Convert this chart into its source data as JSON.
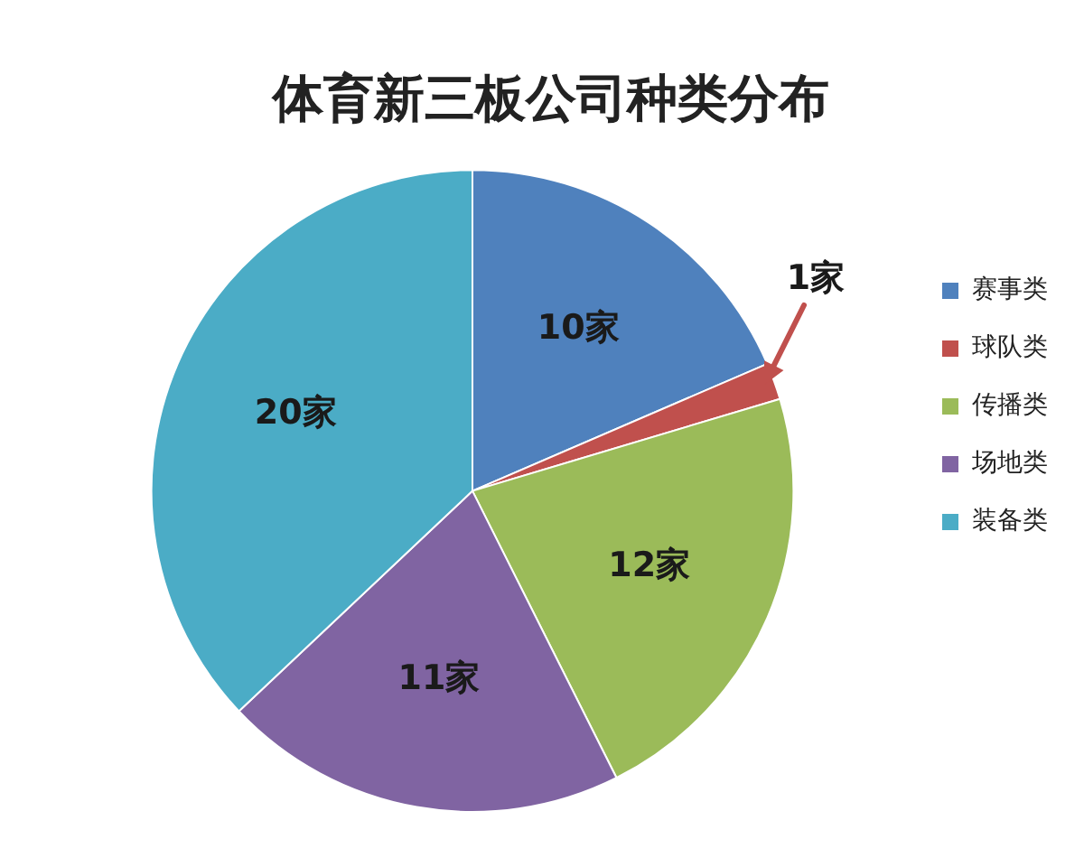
{
  "chart_data": {
    "type": "pie",
    "title": "体育新三板公司种类分布",
    "categories": [
      "赛事类",
      "球队类",
      "传播类",
      "场地类",
      "装备类"
    ],
    "values": [
      10,
      1,
      12,
      11,
      20
    ],
    "colors": [
      "#4f81bd",
      "#c0504d",
      "#9bbb59",
      "#8064a2",
      "#4bacc6"
    ],
    "value_labels": [
      "10家",
      "1家",
      "12家",
      "11家",
      "20家"
    ],
    "legend": "right"
  }
}
